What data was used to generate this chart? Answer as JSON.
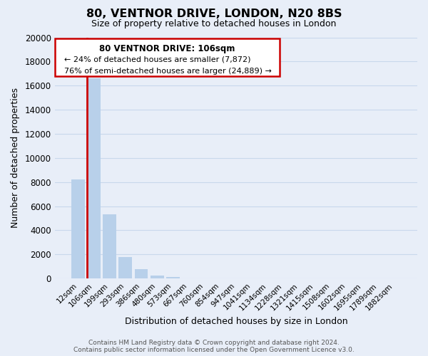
{
  "title": "80, VENTNOR DRIVE, LONDON, N20 8BS",
  "subtitle": "Size of property relative to detached houses in London",
  "xlabel": "Distribution of detached houses by size in London",
  "ylabel": "Number of detached properties",
  "bar_labels": [
    "12sqm",
    "106sqm",
    "199sqm",
    "293sqm",
    "386sqm",
    "480sqm",
    "573sqm",
    "667sqm",
    "760sqm",
    "854sqm",
    "947sqm",
    "1041sqm",
    "1134sqm",
    "1228sqm",
    "1321sqm",
    "1415sqm",
    "1508sqm",
    "1602sqm",
    "1695sqm",
    "1789sqm",
    "1882sqm"
  ],
  "bar_heights": [
    8200,
    16600,
    5300,
    1800,
    750,
    250,
    150,
    0,
    0,
    0,
    0,
    0,
    0,
    0,
    0,
    0,
    0,
    0,
    0,
    0,
    0
  ],
  "bar_color": "#b8d0ea",
  "highlight_bar_index": 1,
  "highlight_bar_edge_color": "#cc0000",
  "ylim": [
    0,
    20000
  ],
  "yticks": [
    0,
    2000,
    4000,
    6000,
    8000,
    10000,
    12000,
    14000,
    16000,
    18000,
    20000
  ],
  "ann_line1": "80 VENTNOR DRIVE: 106sqm",
  "ann_line2": "← 24% of detached houses are smaller (7,872)",
  "ann_line3": "76% of semi-detached houses are larger (24,889) →",
  "footer_line1": "Contains HM Land Registry data © Crown copyright and database right 2024.",
  "footer_line2": "Contains public sector information licensed under the Open Government Licence v3.0.",
  "grid_color": "#c8d8ec",
  "background_color": "#e8eef8"
}
